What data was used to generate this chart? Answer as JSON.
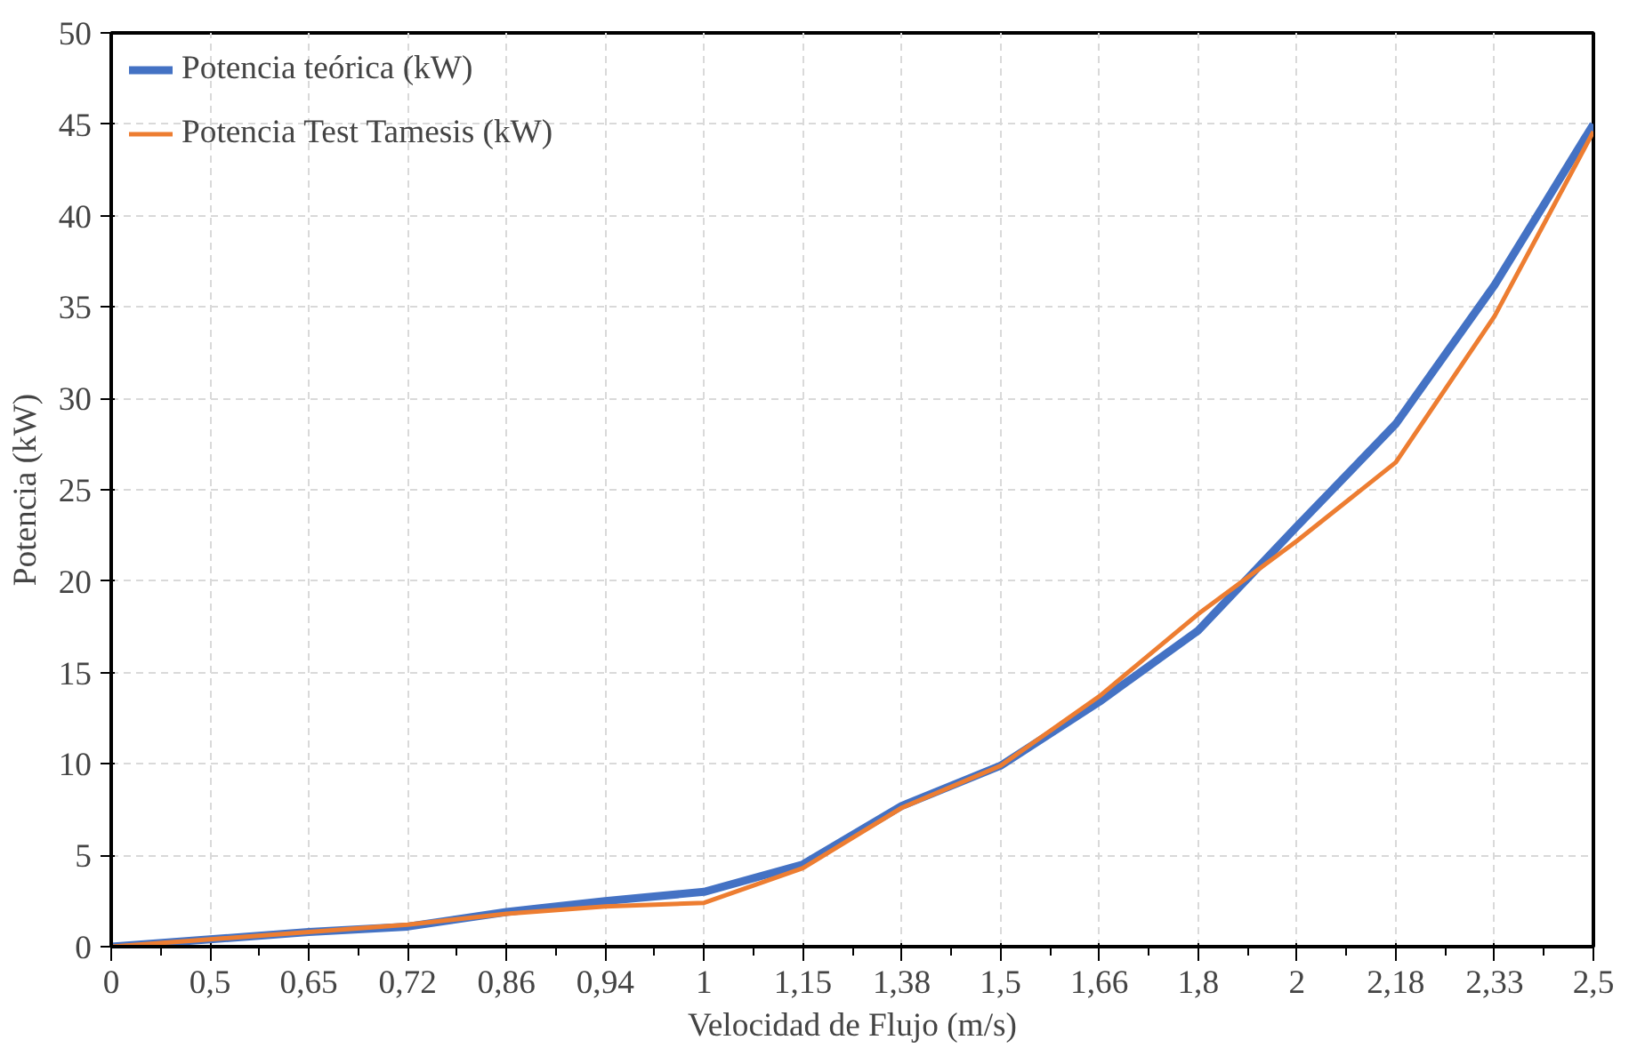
{
  "chart_data": {
    "type": "line",
    "xlabel": "Velocidad de Flujo (m/s)",
    "ylabel": "Potencia (kW)",
    "categories": [
      "0",
      "0,5",
      "0,65",
      "0,72",
      "0,86",
      "0,94",
      "1",
      "1,15",
      "1,38",
      "1,5",
      "1,66",
      "1,8",
      "2",
      "2,18",
      "2,33",
      "2,5"
    ],
    "series": [
      {
        "name": "Potencia teórica (kW)",
        "color": "#4472c4",
        "values": [
          0,
          0.4,
          0.8,
          1.1,
          1.9,
          2.5,
          3.0,
          4.5,
          7.7,
          9.9,
          13.4,
          17.3,
          23.0,
          28.6,
          36.2,
          45.0
        ]
      },
      {
        "name": "Potencia Test Tamesis (kW)",
        "color": "#ed7d31",
        "values": [
          0,
          0.4,
          0.8,
          1.2,
          1.8,
          2.2,
          2.4,
          4.3,
          7.6,
          9.9,
          13.7,
          18.2,
          22.2,
          26.5,
          34.5,
          44.6
        ]
      }
    ],
    "ylim": [
      0,
      50
    ],
    "yticks": [
      0,
      5,
      10,
      15,
      20,
      25,
      30,
      35,
      40,
      45,
      50
    ],
    "grid": true,
    "legend": "top left",
    "line_style": "solid"
  }
}
